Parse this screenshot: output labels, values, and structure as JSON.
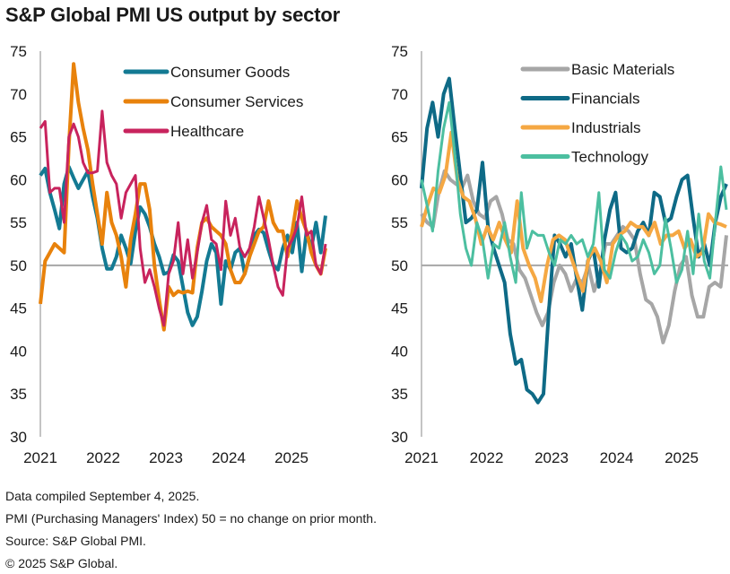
{
  "title": "S&P Global PMI US output by sector",
  "footnotes": [
    "Data compiled September 4, 2025.",
    "PMI (Purchasing Managers' Index) 50 =  no change on prior month.",
    "Source: S&P Global PMI.",
    "© 2025 S&P Global."
  ],
  "chart_data": [
    {
      "type": "line",
      "title": "",
      "xlabel": "",
      "ylabel": "",
      "x_start": "2021-01",
      "x_end": "2025-08",
      "x_ticks": [
        "2021",
        "2022",
        "2023",
        "2024",
        "2025"
      ],
      "y_ticks": [
        "30",
        "35",
        "40",
        "45",
        "50",
        "55",
        "60",
        "65",
        "70",
        "75"
      ],
      "ylim": [
        30,
        75
      ],
      "reference_line": 50,
      "legend_position": "top-right",
      "series": [
        {
          "name": "Consumer Goods",
          "color": "#137a93",
          "values": [
            60.5,
            61.3,
            58.5,
            56.5,
            54.3,
            59.5,
            61.5,
            60.2,
            59.0,
            60.0,
            61.0,
            58.0,
            55.5,
            52.0,
            49.6,
            49.6,
            51.0,
            53.5,
            52.0,
            50.2,
            54.0,
            56.8,
            56.0,
            54.5,
            52.5,
            51.0,
            49.0,
            49.2,
            51.2,
            50.5,
            47.5,
            44.5,
            43.0,
            44.0,
            47.0,
            50.5,
            52.5,
            51.5,
            45.5,
            50.5,
            49.5,
            51.5,
            52.0,
            49.0,
            51.0,
            53.5,
            54.2,
            53.8,
            51.8,
            50.0,
            49.5,
            52.0,
            53.5,
            51.5,
            55.0,
            49.3,
            54.0,
            52.0,
            55.0,
            51.5,
            55.8
          ]
        },
        {
          "name": "Consumer Services",
          "color": "#e8820c",
          "values": [
            45.5,
            50.5,
            51.5,
            52.5,
            52.0,
            51.5,
            64.0,
            73.5,
            69.0,
            66.0,
            63.5,
            59.5,
            56.0,
            52.5,
            58.5,
            55.0,
            53.5,
            51.0,
            47.5,
            53.0,
            56.0,
            59.5,
            59.5,
            56.5,
            50.0,
            46.0,
            42.5,
            47.5,
            46.5,
            47.0,
            46.8,
            47.0,
            46.8,
            52.0,
            55.0,
            55.5,
            54.5,
            54.0,
            53.5,
            52.5,
            49.5,
            48.0,
            48.0,
            49.0,
            51.0,
            52.5,
            54.0,
            54.5,
            57.5,
            55.0,
            54.0,
            54.0,
            51.0,
            54.0,
            57.5,
            55.5,
            54.0,
            51.5,
            50.0,
            49.0,
            52.0
          ]
        },
        {
          "name": "Healthcare",
          "color": "#c8235d",
          "values": [
            66.0,
            66.8,
            58.5,
            59.0,
            59.0,
            55.0,
            65.0,
            66.5,
            65.0,
            62.0,
            60.8,
            60.8,
            61.0,
            68.0,
            62.0,
            60.5,
            59.5,
            55.5,
            58.5,
            59.5,
            60.5,
            52.0,
            48.0,
            49.5,
            47.5,
            45.0,
            43.0,
            49.0,
            50.5,
            55.0,
            49.0,
            53.0,
            48.5,
            51.5,
            55.0,
            57.0,
            53.0,
            52.5,
            49.5,
            57.5,
            53.5,
            55.5,
            52.0,
            51.0,
            52.0,
            54.5,
            58.0,
            55.5,
            53.0,
            50.0,
            47.5,
            46.5,
            52.0,
            53.0,
            54.5,
            58.0,
            53.5,
            54.0,
            50.0,
            49.0,
            52.5
          ]
        }
      ]
    },
    {
      "type": "line",
      "title": "",
      "xlabel": "",
      "ylabel": "",
      "x_start": "2021-01",
      "x_end": "2025-08",
      "x_ticks": [
        "2021",
        "2022",
        "2023",
        "2024",
        "2025"
      ],
      "y_ticks": [
        "30",
        "35",
        "40",
        "45",
        "50",
        "55",
        "60",
        "65",
        "70",
        "75"
      ],
      "ylim": [
        30,
        75
      ],
      "reference_line": 50,
      "legend_position": "top-right",
      "series": [
        {
          "name": "Basic Materials",
          "color": "#a6a6a6",
          "values": [
            56.0,
            55.0,
            54.5,
            58.5,
            61.0,
            60.0,
            59.5,
            59.0,
            60.5,
            57.5,
            56.0,
            55.5,
            57.5,
            58.0,
            56.0,
            53.0,
            52.5,
            49.5,
            48.5,
            46.5,
            44.5,
            43.0,
            44.5,
            48.0,
            50.0,
            49.0,
            47.0,
            48.5,
            48.0,
            50.0,
            47.0,
            49.0,
            52.5,
            52.5,
            53.5,
            54.5,
            54.0,
            53.0,
            49.0,
            46.0,
            45.5,
            44.0,
            41.0,
            43.0,
            47.0,
            50.0,
            51.0,
            46.5,
            44.0,
            44.0,
            47.5,
            48.0,
            47.5,
            53.5
          ]
        },
        {
          "name": "Financials",
          "color": "#0e6a86",
          "values": [
            59.0,
            66.0,
            69.0,
            65.0,
            70.0,
            71.8,
            66.0,
            60.5,
            55.0,
            55.5,
            56.5,
            62.0,
            54.5,
            52.0,
            50.0,
            48.0,
            42.0,
            38.5,
            39.0,
            35.5,
            35.0,
            34.0,
            35.0,
            45.0,
            53.5,
            52.5,
            51.0,
            52.5,
            48.5,
            44.8,
            50.5,
            52.0,
            47.5,
            53.0,
            56.5,
            58.5,
            52.0,
            51.5,
            52.0,
            54.0,
            55.0,
            53.5,
            58.5,
            58.0,
            55.0,
            55.5,
            58.0,
            60.0,
            60.5,
            55.5,
            51.0,
            52.5,
            50.0,
            55.0,
            58.0,
            59.5
          ]
        },
        {
          "name": "Industrials",
          "color": "#f5a843",
          "values": [
            54.5,
            57.0,
            59.0,
            58.5,
            60.5,
            65.5,
            60.0,
            58.0,
            57.5,
            55.5,
            52.5,
            54.5,
            53.0,
            55.0,
            53.0,
            51.5,
            57.5,
            52.0,
            50.0,
            48.5,
            45.8,
            50.0,
            53.0,
            53.5,
            53.0,
            51.0,
            49.0,
            47.0,
            51.0,
            52.0,
            50.5,
            48.0,
            52.5,
            53.5,
            54.0,
            55.0,
            54.5,
            54.5,
            53.5,
            55.0,
            52.5,
            53.5,
            53.5,
            54.0,
            52.0,
            53.0,
            51.0,
            51.5,
            56.0,
            55.0,
            54.8,
            54.5
          ]
        },
        {
          "name": "Technology",
          "color": "#4cbfa0",
          "values": [
            60.0,
            57.0,
            54.0,
            61.0,
            66.0,
            69.0,
            63.0,
            56.0,
            52.0,
            50.0,
            55.0,
            53.0,
            48.5,
            52.5,
            52.0,
            55.0,
            51.0,
            48.0,
            58.5,
            52.0,
            54.0,
            53.5,
            53.5,
            51.5,
            50.0,
            53.0,
            52.5,
            53.5,
            52.5,
            53.0,
            51.0,
            52.5,
            58.5,
            49.5,
            48.5,
            51.5,
            53.5,
            52.5,
            50.5,
            51.0,
            53.0,
            51.5,
            49.0,
            50.0,
            55.5,
            52.0,
            48.0,
            49.5,
            54.0,
            49.0,
            56.0,
            50.5,
            48.5,
            55.0,
            61.5,
            56.5
          ]
        }
      ]
    }
  ]
}
